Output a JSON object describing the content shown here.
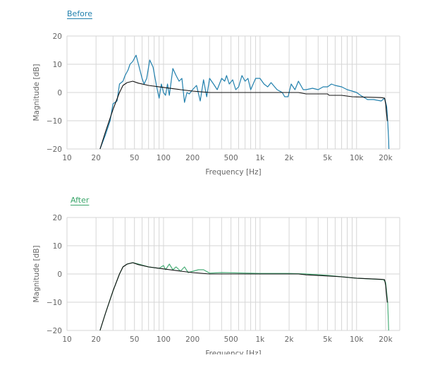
{
  "chart_data": [
    {
      "type": "line",
      "title": "Before",
      "title_color": "#2180ad",
      "xlabel": "Frequency [Hz]",
      "ylabel": "Magnitude [dB]",
      "xscale": "log",
      "xlim": [
        10,
        28000
      ],
      "ylim": [
        -20,
        20
      ],
      "xticks": [
        10,
        20,
        50,
        100,
        200,
        500,
        1000,
        2000,
        5000,
        10000,
        20000
      ],
      "xtick_labels": [
        "10",
        "20",
        "50",
        "100",
        "200",
        "500",
        "1k",
        "2k",
        "5k",
        "10k",
        "20k"
      ],
      "yticks": [
        20,
        10,
        0,
        -10,
        -20
      ],
      "ytick_labels": [
        "20",
        "10",
        "0",
        "−10",
        "−20"
      ],
      "grid": true,
      "series": [
        {
          "color": "#2180ad",
          "points": [
            [
              22,
              -20
            ],
            [
              25,
              -15
            ],
            [
              28,
              -10
            ],
            [
              30,
              -4
            ],
            [
              33,
              -3
            ],
            [
              35,
              3
            ],
            [
              38,
              4
            ],
            [
              40,
              6
            ],
            [
              43,
              8
            ],
            [
              45,
              10
            ],
            [
              48,
              11
            ],
            [
              52,
              13.2
            ],
            [
              55,
              10
            ],
            [
              60,
              5
            ],
            [
              63,
              3
            ],
            [
              67,
              5
            ],
            [
              72,
              11.5
            ],
            [
              78,
              9
            ],
            [
              85,
              2
            ],
            [
              90,
              -2
            ],
            [
              95,
              3
            ],
            [
              100,
              0
            ],
            [
              105,
              -1
            ],
            [
              110,
              3
            ],
            [
              115,
              -1
            ],
            [
              125,
              8.5
            ],
            [
              135,
              6
            ],
            [
              145,
              4
            ],
            [
              155,
              5
            ],
            [
              165,
              -3.5
            ],
            [
              175,
              0
            ],
            [
              185,
              -0.5
            ],
            [
              200,
              1
            ],
            [
              220,
              2.5
            ],
            [
              240,
              -3
            ],
            [
              260,
              4.5
            ],
            [
              280,
              -1.5
            ],
            [
              300,
              5
            ],
            [
              330,
              3
            ],
            [
              360,
              1
            ],
            [
              400,
              5
            ],
            [
              430,
              4
            ],
            [
              450,
              6
            ],
            [
              480,
              3
            ],
            [
              520,
              4.5
            ],
            [
              560,
              1
            ],
            [
              600,
              2
            ],
            [
              650,
              6
            ],
            [
              700,
              4
            ],
            [
              750,
              5
            ],
            [
              800,
              1
            ],
            [
              900,
              5
            ],
            [
              1000,
              5
            ],
            [
              1100,
              3
            ],
            [
              1200,
              2
            ],
            [
              1300,
              3.5
            ],
            [
              1500,
              1
            ],
            [
              1700,
              0
            ],
            [
              1800,
              -1.5
            ],
            [
              1950,
              -1.5
            ],
            [
              2100,
              3
            ],
            [
              2300,
              1
            ],
            [
              2500,
              4
            ],
            [
              2800,
              1
            ],
            [
              3000,
              1
            ],
            [
              3500,
              1.5
            ],
            [
              4000,
              1
            ],
            [
              4500,
              2
            ],
            [
              5000,
              2
            ],
            [
              5500,
              3
            ],
            [
              6000,
              2.5
            ],
            [
              7000,
              2
            ],
            [
              8000,
              1
            ],
            [
              9000,
              0.5
            ],
            [
              10000,
              0
            ],
            [
              11000,
              -1
            ],
            [
              13000,
              -2.5
            ],
            [
              15000,
              -2.5
            ],
            [
              18000,
              -3
            ],
            [
              19500,
              -2
            ],
            [
              20500,
              -5
            ],
            [
              21000,
              -10
            ],
            [
              21500,
              -17
            ],
            [
              21600,
              -20
            ]
          ]
        },
        {
          "color": "#111111",
          "points": [
            [
              22,
              -20
            ],
            [
              25,
              -14
            ],
            [
              30,
              -6
            ],
            [
              35,
              0
            ],
            [
              38,
              2.5
            ],
            [
              42,
              3.5
            ],
            [
              48,
              4
            ],
            [
              55,
              3.3
            ],
            [
              70,
              2.5
            ],
            [
              100,
              1.8
            ],
            [
              150,
              1
            ],
            [
              200,
              0.5
            ],
            [
              300,
              0
            ],
            [
              2500,
              0
            ],
            [
              3000,
              -0.5
            ],
            [
              5000,
              -0.5
            ],
            [
              5200,
              -1
            ],
            [
              7000,
              -1
            ],
            [
              9000,
              -1.5
            ],
            [
              18000,
              -1.8
            ],
            [
              19500,
              -2
            ],
            [
              20000,
              -4
            ],
            [
              20800,
              -10
            ],
            [
              21000,
              -10
            ]
          ]
        }
      ]
    },
    {
      "type": "line",
      "title": "After",
      "title_color": "#3aa56a",
      "xlabel": "Frequency [Hz]",
      "ylabel": "Magnitude [dB]",
      "xscale": "log",
      "xlim": [
        10,
        28000
      ],
      "ylim": [
        -20,
        20
      ],
      "xticks": [
        10,
        20,
        50,
        100,
        200,
        500,
        1000,
        2000,
        5000,
        10000,
        20000
      ],
      "xtick_labels": [
        "10",
        "20",
        "50",
        "100",
        "200",
        "500",
        "1k",
        "2k",
        "5k",
        "10k",
        "20k"
      ],
      "yticks": [
        20,
        10,
        0,
        -10,
        -20
      ],
      "ytick_labels": [
        "20",
        "10",
        "0",
        "−10",
        "−20"
      ],
      "grid": true,
      "series": [
        {
          "color": "#4caf7a",
          "points": [
            [
              22,
              -20
            ],
            [
              25,
              -14
            ],
            [
              30,
              -6
            ],
            [
              35,
              0
            ],
            [
              38,
              2.5
            ],
            [
              42,
              3.5
            ],
            [
              48,
              4
            ],
            [
              55,
              3.5
            ],
            [
              70,
              2.5
            ],
            [
              90,
              2
            ],
            [
              100,
              3
            ],
            [
              105,
              1.5
            ],
            [
              115,
              3.5
            ],
            [
              125,
              1.5
            ],
            [
              135,
              2.5
            ],
            [
              150,
              1
            ],
            [
              165,
              2.5
            ],
            [
              180,
              0.5
            ],
            [
              230,
              1.5
            ],
            [
              260,
              1.5
            ],
            [
              300,
              0.3
            ],
            [
              400,
              0.5
            ],
            [
              1000,
              0.2
            ],
            [
              2000,
              0.2
            ],
            [
              3000,
              0
            ],
            [
              5000,
              -0.5
            ],
            [
              7000,
              -1
            ],
            [
              10000,
              -1.5
            ],
            [
              19000,
              -2
            ],
            [
              20000,
              -3
            ],
            [
              21000,
              -10
            ],
            [
              21500,
              -20
            ]
          ]
        },
        {
          "color": "#111111",
          "points": [
            [
              22,
              -20
            ],
            [
              25,
              -14
            ],
            [
              30,
              -6
            ],
            [
              35,
              0
            ],
            [
              38,
              2.5
            ],
            [
              42,
              3.5
            ],
            [
              48,
              4
            ],
            [
              55,
              3.3
            ],
            [
              70,
              2.5
            ],
            [
              100,
              1.8
            ],
            [
              150,
              1
            ],
            [
              200,
              0.5
            ],
            [
              300,
              0
            ],
            [
              2500,
              0
            ],
            [
              3000,
              -0.3
            ],
            [
              5000,
              -0.7
            ],
            [
              7000,
              -1
            ],
            [
              10000,
              -1.5
            ],
            [
              18000,
              -1.9
            ],
            [
              19500,
              -2
            ],
            [
              20000,
              -4
            ],
            [
              20800,
              -10
            ],
            [
              21000,
              -10
            ]
          ]
        }
      ]
    }
  ]
}
